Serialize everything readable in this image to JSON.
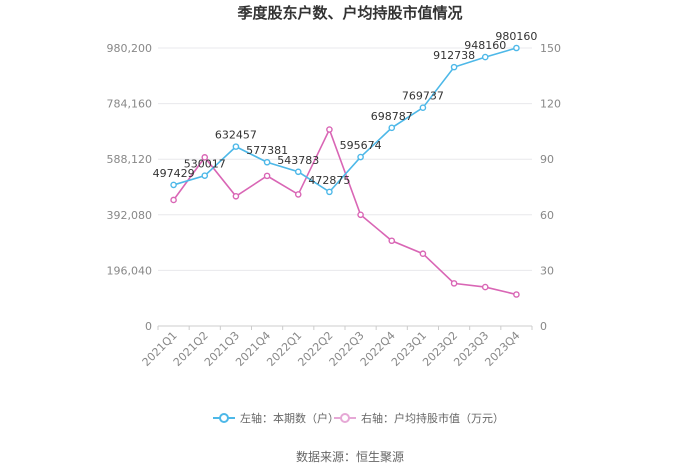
{
  "chart_data": {
    "type": "line",
    "title": "季度股东户数、户均持股市值情况",
    "categories": [
      "2021Q1",
      "2021Q2",
      "2021Q3",
      "2021Q4",
      "2022Q1",
      "2022Q2",
      "2022Q3",
      "2022Q4",
      "2023Q1",
      "2023Q2",
      "2023Q3",
      "2023Q4"
    ],
    "y_left": {
      "ticks": [
        0,
        196040,
        392080,
        588120,
        784160,
        980200
      ],
      "tick_labels": [
        "0",
        "196,040",
        "392,080",
        "588,120",
        "784,160",
        "980,200"
      ],
      "ylim": [
        0,
        980200
      ]
    },
    "y_right": {
      "ticks": [
        0,
        30,
        60,
        90,
        120,
        150
      ],
      "tick_labels": [
        "0",
        "30",
        "60",
        "90",
        "120",
        "150"
      ],
      "ylim": [
        0,
        150
      ]
    },
    "series": [
      {
        "name": "左轴：本期数（户）",
        "axis": "left",
        "color": "#4db8e8",
        "values": [
          497429,
          530017,
          632457,
          577381,
          543783,
          472875,
          595674,
          698787,
          769737,
          912738,
          948160,
          980160
        ],
        "labels": [
          "497429",
          "530017",
          "632457",
          "577381",
          "543783",
          "472875",
          "595674",
          "698787",
          "769737",
          "912738",
          "948160",
          "980160"
        ]
      },
      {
        "name": "右轴：户均持股市值（万元）",
        "axis": "right",
        "color": "#d966b5",
        "values": [
          68,
          91,
          70,
          81,
          71,
          106,
          60,
          46,
          39,
          23,
          21,
          17
        ]
      }
    ],
    "grid": true,
    "legend": "bottom"
  },
  "source": "数据来源：恒生聚源"
}
